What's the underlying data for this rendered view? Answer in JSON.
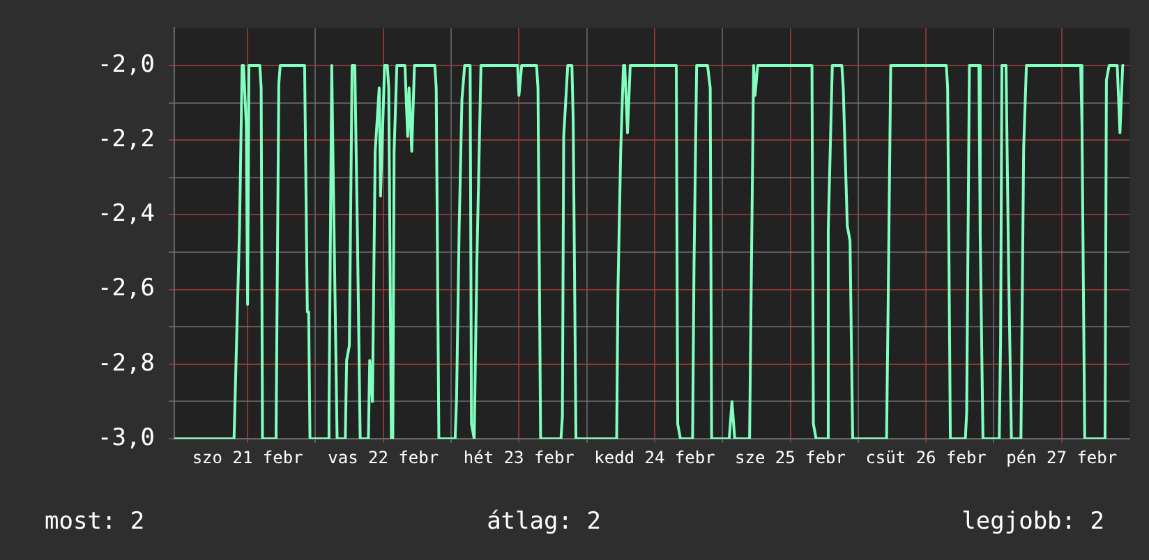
{
  "chart_data": {
    "type": "line",
    "color": "#80ffbf",
    "marker": "none",
    "grid": true,
    "legend": false,
    "x": [
      "--02-20T23:02",
      "--02-21T09:36",
      "--02-21T10:34",
      "--02-21T11:02",
      "--02-21T11:17",
      "--02-21T11:46",
      "--02-21T12:00",
      "--02-21T12:14",
      "--02-21T14:10",
      "--02-21T14:24",
      "--02-21T14:38",
      "--02-21T17:02",
      "--02-21T17:31",
      "--02-21T17:46",
      "--02-21T22:05",
      "--02-21T22:34",
      "--02-21T22:48",
      "--02-21T23:02",
      "--02-22T02:10",
      "--02-22T02:24",
      "--02-22T02:53",
      "--02-22T03:07",
      "--02-22T03:50",
      "--02-22T05:17",
      "--02-22T05:31",
      "--02-22T06:00",
      "--02-22T06:29",
      "--02-22T06:58",
      "--02-22T07:26",
      "--02-22T07:55",
      "--02-22T09:22",
      "--02-22T09:36",
      "--02-22T10:05",
      "--02-22T10:34",
      "--02-22T11:17",
      "--02-22T11:31",
      "--02-22T12:14",
      "--02-22T12:43",
      "--02-22T12:58",
      "--02-22T13:26",
      "--02-22T13:41",
      "--02-22T13:55",
      "--02-22T14:24",
      "--02-22T15:50",
      "--02-22T16:19",
      "--02-22T16:34",
      "--02-22T17:02",
      "--02-22T17:31",
      "--02-22T21:07",
      "--02-22T21:22",
      "--02-22T21:50",
      "--02-23T00:43",
      "--02-23T00:58",
      "--02-23T01:26",
      "--02-23T01:55",
      "--02-23T02:24",
      "--02-23T03:22",
      "--02-23T03:36",
      "--02-23T04:05",
      "--02-23T04:34",
      "--02-23T05:17",
      "--02-23T11:46",
      "--02-23T12:00",
      "--02-23T12:29",
      "--02-23T15:07",
      "--02-23T15:22",
      "--02-23T15:50",
      "--02-23T19:26",
      "--02-23T19:41",
      "--02-23T19:55",
      "--02-23T20:38",
      "--02-23T21:22",
      "--02-23T21:36",
      "--02-23T22:05",
      "--02-24T05:17",
      "--02-24T05:31",
      "--02-24T06:00",
      "--02-24T06:29",
      "--02-24T06:43",
      "--02-24T07:12",
      "--02-24T07:41",
      "--02-24T15:50",
      "--02-24T16:05",
      "--02-24T16:34",
      "--02-24T18:43",
      "--02-24T18:58",
      "--02-24T19:26",
      "--02-24T21:22",
      "--02-24T21:50",
      "--02-24T22:05",
      "--02-25T01:12",
      "--02-25T01:41",
      "--02-25T02:10",
      "--02-25T04:48",
      "--02-25T05:02",
      "--02-25T05:31",
      "--02-25T05:46",
      "--02-25T06:14",
      "--02-25T15:50",
      "--02-25T16:05",
      "--02-25T16:34",
      "--02-25T18:29",
      "--02-25T18:43",
      "--02-25T19:26",
      "--02-25T21:07",
      "--02-25T21:22",
      "--02-25T22:05",
      "--02-25T22:34",
      "--02-25T23:02",
      "--02-26T05:02",
      "--02-26T05:17",
      "--02-26T05:46",
      "--02-26T15:36",
      "--02-26T15:50",
      "--02-26T16:19",
      "--02-26T18:58",
      "--02-26T19:12",
      "--02-26T19:41",
      "--02-26T21:22",
      "--02-26T21:36",
      "--02-26T22:05",
      "--02-27T00:58",
      "--02-27T01:12",
      "--02-27T01:26",
      "--02-27T02:10",
      "--02-27T02:38",
      "--02-27T03:07",
      "--02-27T04:48",
      "--02-27T05:17",
      "--02-27T05:46",
      "--02-27T15:22",
      "--02-27T15:36",
      "--02-27T16:05",
      "--02-27T19:41",
      "--02-27T19:55",
      "--02-27T20:24",
      "--02-27T21:50",
      "--02-27T22:19",
      "--02-27T22:48",
      "--02-27T23:02"
    ],
    "values": [
      -3,
      -3,
      -2.44,
      -2,
      -2,
      -2.16,
      -2.64,
      -2,
      -2,
      -2.06,
      -3,
      -3,
      -2.05,
      -2,
      -2,
      -2.66,
      -2.66,
      -3,
      -3,
      -2.94,
      -2,
      -2.26,
      -3,
      -3,
      -2.79,
      -2.75,
      -2,
      -2,
      -2.46,
      -3,
      -3,
      -2.79,
      -2.9,
      -2.23,
      -2.06,
      -2.35,
      -2,
      -2,
      -2.06,
      -3,
      -3,
      -2.23,
      -2,
      -2,
      -2.19,
      -2.06,
      -2.23,
      -2,
      -2,
      -2.06,
      -3,
      -3,
      -2.89,
      -2.43,
      -2.09,
      -2,
      -2,
      -2.96,
      -3,
      -2.52,
      -2,
      -2,
      -2.08,
      -2,
      -2,
      -2.06,
      -3,
      -3,
      -2.94,
      -2.19,
      -2,
      -2,
      -2.15,
      -3,
      -3,
      -2.6,
      -2.23,
      -2,
      -2,
      -2.18,
      -2,
      -2,
      -2.96,
      -3,
      -3,
      -2.54,
      -2,
      -2,
      -2.06,
      -3,
      -3,
      -2.9,
      -3,
      -3,
      -2.67,
      -2,
      -2.08,
      -2,
      -2,
      -2.96,
      -3,
      -3,
      -2.44,
      -2,
      -2,
      -2.06,
      -2.43,
      -2.47,
      -3,
      -3,
      -2.67,
      -2,
      -2,
      -2.06,
      -3,
      -3,
      -2.93,
      -2,
      -2,
      -2.46,
      -3,
      -3,
      -2.74,
      -2,
      -2,
      -2.56,
      -3,
      -3,
      -2.22,
      -2,
      -2,
      -2.16,
      -3,
      -3,
      -2.04,
      -2,
      -2,
      -2.18,
      -2,
      -2
    ],
    "xlim": [
      "--02-20T23:02",
      "--02-28T00:00"
    ],
    "xticks": [
      {
        "value": "--02-21T12:00",
        "label": "szo 21 febr"
      },
      {
        "value": "--02-22T00:00",
        "label": null
      },
      {
        "value": "--02-22T12:00",
        "label": "vas 22 febr"
      },
      {
        "value": "--02-23T00:00",
        "label": null
      },
      {
        "value": "--02-23T12:00",
        "label": "hét 23 febr"
      },
      {
        "value": "--02-24T00:00",
        "label": null
      },
      {
        "value": "--02-24T12:00",
        "label": "kedd 24 febr"
      },
      {
        "value": "--02-25T00:00",
        "label": null
      },
      {
        "value": "--02-25T12:00",
        "label": "sze 25 febr"
      },
      {
        "value": "--02-26T00:00",
        "label": null
      },
      {
        "value": "--02-26T12:00",
        "label": "csüt 26 febr"
      },
      {
        "value": "--02-27T00:00",
        "label": null
      },
      {
        "value": "--02-27T12:00",
        "label": "pén 27 febr"
      }
    ],
    "ylim": [
      -3,
      -1.9
    ],
    "yticks": [
      {
        "value": -3,
        "label": "-3,0"
      },
      {
        "value": -2.9,
        "label": null
      },
      {
        "value": -2.8,
        "label": "-2,8"
      },
      {
        "value": -2.7,
        "label": null
      },
      {
        "value": -2.6,
        "label": "-2,6"
      },
      {
        "value": -2.5,
        "label": null
      },
      {
        "value": -2.4,
        "label": "-2,4"
      },
      {
        "value": -2.3,
        "label": null
      },
      {
        "value": -2.2,
        "label": "-2,2"
      },
      {
        "value": -2.1,
        "label": null
      },
      {
        "value": -2,
        "label": "-2,0"
      }
    ],
    "annotations": [
      "most: 2",
      "átlag: 2",
      "legjobb: 2"
    ]
  }
}
